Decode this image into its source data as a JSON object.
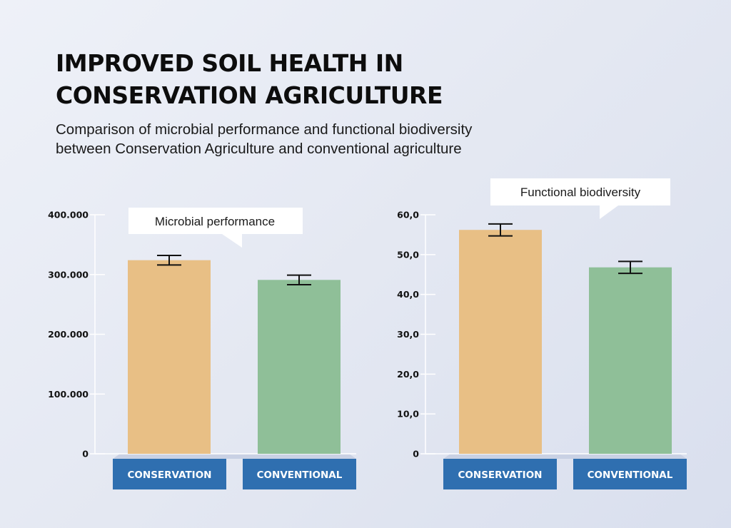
{
  "header": {
    "title_line1": "IMPROVED SOIL HEALTH IN",
    "title_line2": "CONSERVATION AGRICULTURE",
    "subtitle_line1": "Comparison of microbial performance and functional biodiversity",
    "subtitle_line2": "between Conservation Agriculture and conventional agriculture"
  },
  "colors": {
    "conservation": "#e8bf85",
    "conventional": "#8fbf98",
    "category_box": "#2f6fb0",
    "axis": "#ffffff"
  },
  "chart_data": [
    {
      "type": "bar",
      "title": "Microbial performance",
      "categories": [
        "CONSERVATION",
        "CONVENTIONAL"
      ],
      "values": [
        324000,
        291000
      ],
      "error_bars": [
        8000,
        8000
      ],
      "ylim": [
        0,
        400000
      ],
      "yticks": [
        0,
        100000,
        200000,
        300000,
        400000
      ],
      "ytick_labels": [
        "0",
        "100.000",
        "200.000",
        "300.000",
        "400.000"
      ],
      "legend": "none",
      "grid": false
    },
    {
      "type": "bar",
      "title": "Functional biodiversity",
      "categories": [
        "CONSERVATION",
        "CONVENTIONAL"
      ],
      "values": [
        56.2,
        46.8
      ],
      "error_bars": [
        1.5,
        1.5
      ],
      "ylim": [
        0,
        60
      ],
      "yticks": [
        0,
        10,
        20,
        30,
        40,
        50,
        60
      ],
      "ytick_labels": [
        "0",
        "10,0",
        "20,0",
        "30,0",
        "40,0",
        "50,0",
        "60,0"
      ],
      "legend": "none",
      "grid": false
    }
  ]
}
